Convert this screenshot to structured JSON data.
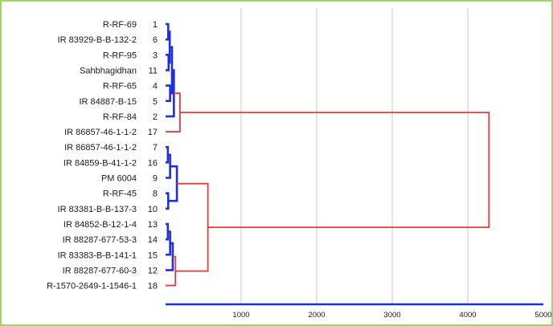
{
  "chart_data": {
    "type": "dendrogram",
    "title": "",
    "xlabel": "",
    "ylabel": "",
    "xlim": [
      0,
      5000
    ],
    "x_ticks": [
      "1000",
      "2000",
      "3000",
      "4000",
      "5000"
    ],
    "grid": "vertical",
    "leaves": [
      {
        "name": "R-RF-69",
        "id": "1"
      },
      {
        "name": "IR 83929-B-B-132-2",
        "id": "6"
      },
      {
        "name": "R-RF-95",
        "id": "3"
      },
      {
        "name": "Sahbhagidhan",
        "id": "11"
      },
      {
        "name": "R-RF-65",
        "id": "4"
      },
      {
        "name": "IR 84887-B-15",
        "id": "5"
      },
      {
        "name": "R-RF-84",
        "id": "2"
      },
      {
        "name": "IR 86857-46-1-1-2",
        "id": "17"
      },
      {
        "name": "IR 86857-46-1-1-2",
        "id": "7"
      },
      {
        "name": "IR 84859-B-41-1-2",
        "id": "16"
      },
      {
        "name": "PM 6004",
        "id": "9"
      },
      {
        "name": "R-RF-45",
        "id": "8"
      },
      {
        "name": "IR 83381-B-B-137-3",
        "id": "10"
      },
      {
        "name": "IR 84852-B-12-1-4",
        "id": "13"
      },
      {
        "name": "IR 88287-677-53-3",
        "id": "14"
      },
      {
        "name": "IR 83383-B-B-141-1",
        "id": "15"
      },
      {
        "name": "IR 88287-677-60-3",
        "id": "12"
      },
      {
        "name": "R-1570-2649-1-1546-1",
        "id": "18"
      }
    ],
    "merges": [
      {
        "a": 0,
        "b": 1,
        "height": 35,
        "color": "blue"
      },
      {
        "a": 2,
        "b": 3,
        "height": 40,
        "color": "blue"
      },
      {
        "a": 18,
        "b": 19,
        "height": 55,
        "color": "blue"
      },
      {
        "a": 4,
        "b": 5,
        "height": 60,
        "color": "blue"
      },
      {
        "a": 20,
        "b": 21,
        "height": 85,
        "color": "blue"
      },
      {
        "a": 22,
        "b": 6,
        "height": 110,
        "color": "blue"
      },
      {
        "a": 23,
        "b": 7,
        "height": 190,
        "color": "red"
      },
      {
        "a": 8,
        "b": 9,
        "height": 30,
        "color": "blue"
      },
      {
        "a": 11,
        "b": 12,
        "height": 35,
        "color": "blue"
      },
      {
        "a": 25,
        "b": 10,
        "height": 60,
        "color": "blue"
      },
      {
        "a": 27,
        "b": 26,
        "height": 150,
        "color": "blue"
      },
      {
        "a": 13,
        "b": 14,
        "height": 30,
        "color": "blue"
      },
      {
        "a": 29,
        "b": 15,
        "height": 60,
        "color": "blue"
      },
      {
        "a": 30,
        "b": 16,
        "height": 95,
        "color": "blue"
      },
      {
        "a": 31,
        "b": 17,
        "height": 130,
        "color": "red"
      },
      {
        "a": 28,
        "b": 32,
        "height": 560,
        "color": "red"
      },
      {
        "a": 24,
        "b": 33,
        "height": 4280,
        "color": "red"
      }
    ],
    "colors": {
      "blue": "#1f2ee0",
      "red": "#e83a3a",
      "grid": "#bdbdbd",
      "axis": "#1f2ee0"
    }
  }
}
